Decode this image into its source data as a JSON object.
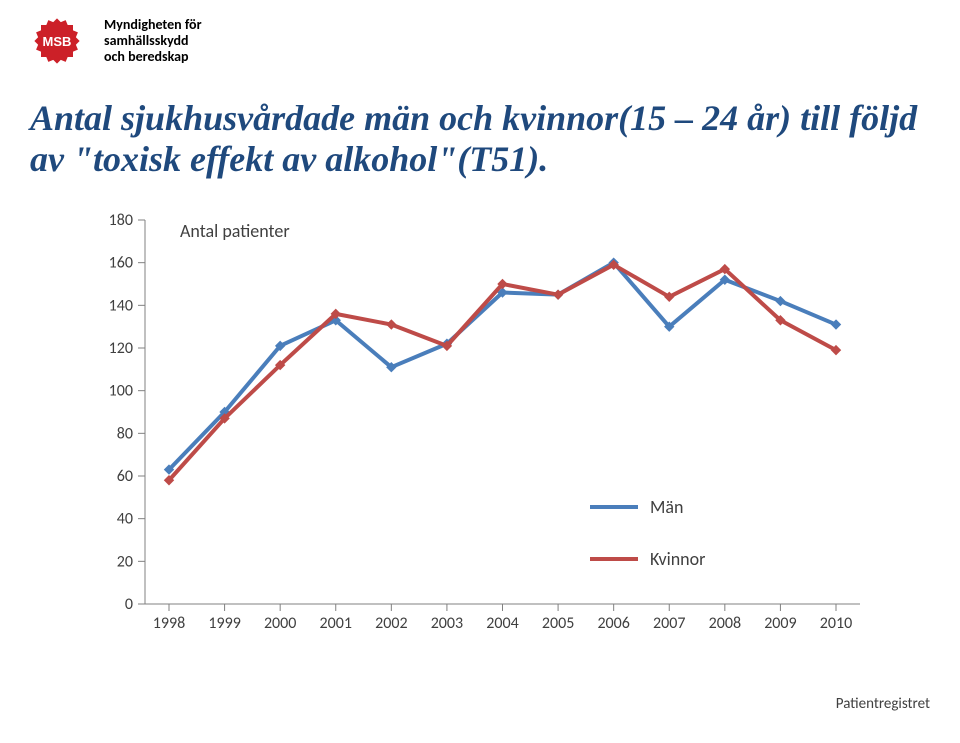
{
  "logo": {
    "text_line1": "Myndigheten för",
    "text_line2": "samhällsskydd",
    "text_line3": "och beredskap",
    "badge_text": "MSB",
    "badge_color": "#cc2028",
    "text_color": "#000000"
  },
  "title": {
    "text": "Antal sjukhusvårdade män och kvinnor(15 – 24 år) till följd av \"toxisk effekt av alkohol\"(T51).",
    "color": "#1f497d",
    "fontsize": 36,
    "font_family": "Times New Roman",
    "italic": true,
    "bold": true
  },
  "chart": {
    "type": "line",
    "ylabel": "Antal patienter",
    "label_fontsize": 18,
    "background_color": "#ffffff",
    "tick_color": "#808080",
    "tick_label_color": "#404040",
    "axis_color": "#808080",
    "line_width": 4,
    "marker_radius": 4.5,
    "years": [
      "1998",
      "1999",
      "2000",
      "2001",
      "2002",
      "2003",
      "2004",
      "2005",
      "2006",
      "2007",
      "2008",
      "2009",
      "2010"
    ],
    "ylim": [
      0,
      180
    ],
    "ytick_step": 20,
    "yticks": [
      0,
      20,
      40,
      60,
      80,
      100,
      120,
      140,
      160,
      180
    ],
    "series": [
      {
        "id": "men",
        "label": "Män",
        "color": "#4a7ebb",
        "values": [
          63,
          90,
          121,
          133,
          111,
          122,
          146,
          145,
          160,
          130,
          152,
          142,
          131
        ]
      },
      {
        "id": "women",
        "label": "Kvinnor",
        "color": "#be4b48",
        "values": [
          58,
          87,
          112,
          136,
          131,
          121,
          150,
          145,
          159,
          144,
          157,
          133,
          119
        ]
      }
    ],
    "tick_fontsize": 16
  },
  "source": {
    "text": "Patientregistret",
    "fontsize": 15,
    "color": "#404040"
  }
}
